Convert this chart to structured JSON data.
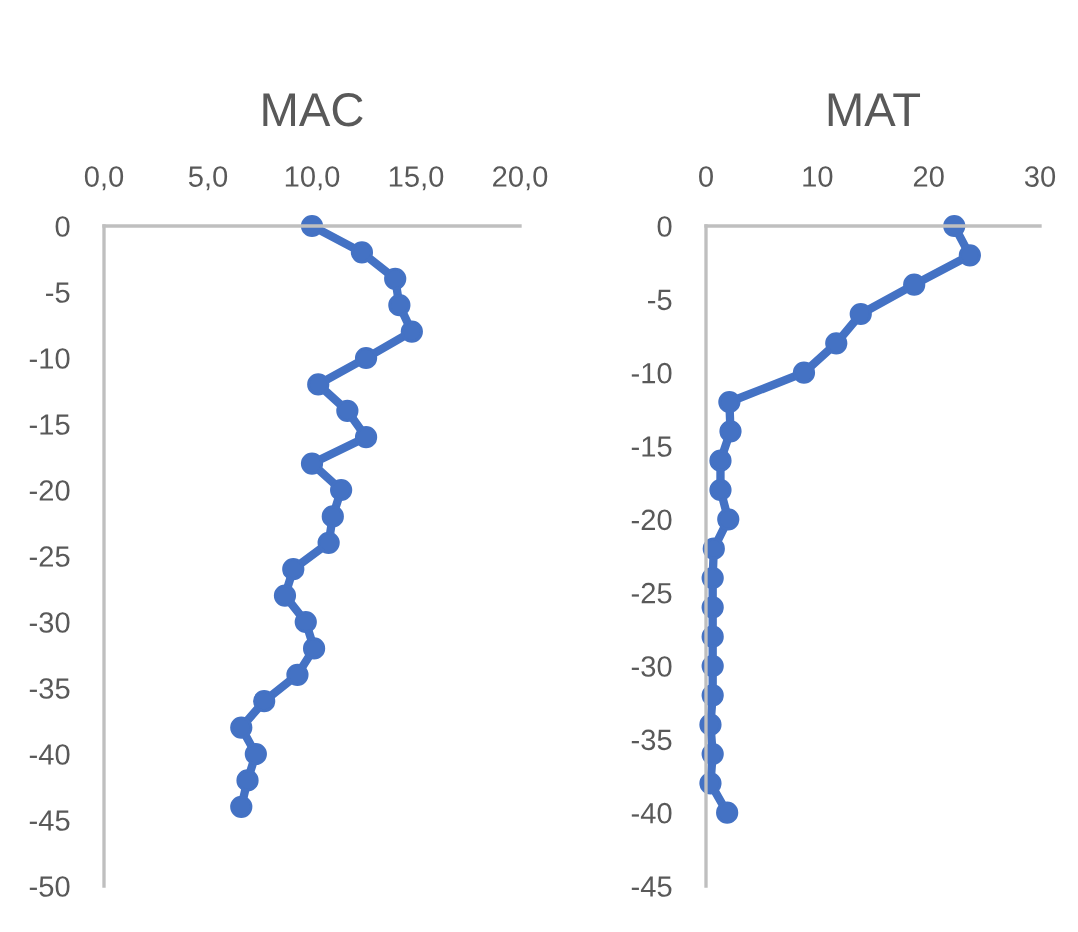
{
  "chart_data": [
    {
      "type": "line",
      "title": "MAC",
      "marker": "circle",
      "line_style": "solid",
      "grid": false,
      "series": [
        {
          "color": "#4472c4",
          "x": [
            10.0,
            12.4,
            14.0,
            14.2,
            14.8,
            12.6,
            10.3,
            11.7,
            12.6,
            10.0,
            11.4,
            11.0,
            10.8,
            9.1,
            8.7,
            9.7,
            10.1,
            9.3,
            7.7,
            6.6,
            7.3,
            6.9,
            6.6
          ],
          "values": [
            0,
            -2,
            -4,
            -6,
            -8,
            -10,
            -12,
            -14,
            -16,
            -18,
            -20,
            -22,
            -24,
            -26,
            -28,
            -30,
            -32,
            -34,
            -36,
            -38,
            -40,
            -42,
            -44
          ]
        }
      ],
      "xlim": [
        0,
        20
      ],
      "xticks": [
        {
          "value": 0,
          "label": "0,0"
        },
        {
          "value": 5,
          "label": "5,0"
        },
        {
          "value": 10,
          "label": "10,0"
        },
        {
          "value": 15,
          "label": "15,0"
        },
        {
          "value": 20,
          "label": "20,0"
        }
      ],
      "ylim": [
        -50,
        0
      ],
      "yticks": [
        0,
        -5,
        -10,
        -15,
        -20,
        -25,
        -30,
        -35,
        -40,
        -45,
        -50
      ]
    },
    {
      "type": "line",
      "title": "MAT",
      "marker": "circle",
      "line_style": "solid",
      "grid": false,
      "series": [
        {
          "color": "#4472c4",
          "x": [
            22.3,
            23.7,
            18.7,
            13.9,
            11.7,
            8.8,
            2.1,
            2.2,
            1.3,
            1.3,
            2.0,
            0.7,
            0.6,
            0.6,
            0.6,
            0.6,
            0.6,
            0.4,
            0.6,
            0.4,
            1.9
          ],
          "values": [
            0,
            -2,
            -4,
            -6,
            -8,
            -10,
            -12,
            -14,
            -16,
            -18,
            -20,
            -22,
            -24,
            -26,
            -28,
            -30,
            -32,
            -34,
            -36,
            -38,
            -40
          ]
        }
      ],
      "xlim": [
        0,
        30
      ],
      "xticks": [
        0,
        10,
        20,
        30
      ],
      "ylim": [
        -45,
        0
      ],
      "yticks": [
        0,
        -5,
        -10,
        -15,
        -20,
        -25,
        -30,
        -35,
        -40,
        -45
      ]
    }
  ]
}
